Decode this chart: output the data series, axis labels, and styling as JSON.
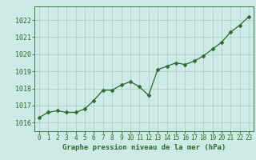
{
  "x": [
    0,
    1,
    2,
    3,
    4,
    5,
    6,
    7,
    8,
    9,
    10,
    11,
    12,
    13,
    14,
    15,
    16,
    17,
    18,
    19,
    20,
    21,
    22,
    23
  ],
  "y": [
    1016.3,
    1016.6,
    1016.7,
    1016.6,
    1016.6,
    1016.8,
    1017.3,
    1017.9,
    1017.9,
    1018.2,
    1018.4,
    1018.1,
    1017.6,
    1019.1,
    1019.3,
    1019.5,
    1019.4,
    1019.6,
    1019.9,
    1020.3,
    1020.7,
    1021.3,
    1021.7,
    1022.2
  ],
  "line_color": "#2d6a2d",
  "marker": "D",
  "marker_size": 2.5,
  "bg_color": "#ceeae7",
  "grid_color": "#aac8c4",
  "xlabel": "Graphe pression niveau de la mer (hPa)",
  "xlabel_color": "#2d6a2d",
  "tick_color": "#2d6a2d",
  "ylim": [
    1015.5,
    1022.8
  ],
  "xlim": [
    -0.5,
    23.5
  ],
  "yticks": [
    1016,
    1017,
    1018,
    1019,
    1020,
    1021,
    1022
  ],
  "xticks": [
    0,
    1,
    2,
    3,
    4,
    5,
    6,
    7,
    8,
    9,
    10,
    11,
    12,
    13,
    14,
    15,
    16,
    17,
    18,
    19,
    20,
    21,
    22,
    23
  ],
  "spine_color": "#2d6a2d",
  "tick_fontsize": 5.5,
  "ytick_fontsize": 6.0,
  "xlabel_fontsize": 6.5
}
